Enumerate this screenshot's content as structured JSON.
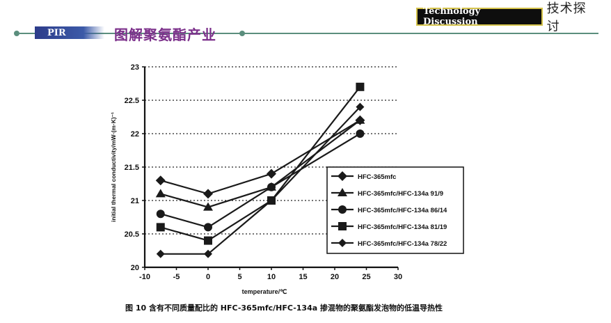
{
  "header": {
    "badge_en": "Technology Discussion",
    "badge_zh": "技术探讨",
    "tab": "PIR",
    "title": "图解聚氨酯产业"
  },
  "caption": "图 10   含有不同质量配比的 HFC-365mfc/HFC-134a 掺混物的聚氨酯发泡物的低温导热性",
  "chart_data": {
    "type": "line",
    "xlabel": "temperature/℃",
    "ylabel": "initial thermal conductivity/mW·(m·K)⁻¹",
    "xlim": [
      -10,
      30
    ],
    "ylim": [
      20,
      23
    ],
    "xticks": [
      -10,
      -5,
      0,
      5,
      10,
      15,
      20,
      25,
      30
    ],
    "yticks": [
      20,
      20.5,
      21,
      21.5,
      22,
      22.5,
      23
    ],
    "grid": "horizontal dotted",
    "legend_position": "right",
    "series": [
      {
        "name": "HFC-365mfc",
        "marker": "diamond",
        "x": [
          -7.5,
          0,
          10,
          24
        ],
        "y": [
          21.3,
          21.1,
          21.4,
          22.2
        ]
      },
      {
        "name": "HFC-365mfc/HFC-134a 91/9",
        "marker": "triangle",
        "x": [
          -7.5,
          0,
          10,
          24
        ],
        "y": [
          21.1,
          20.9,
          21.2,
          22.2
        ]
      },
      {
        "name": "HFC-365mfc/HFC-134a 86/14",
        "marker": "circle",
        "x": [
          -7.5,
          0,
          10,
          24
        ],
        "y": [
          20.8,
          20.6,
          21.2,
          22.0
        ]
      },
      {
        "name": "HFC-365mfc/HFC-134a 81/19",
        "marker": "square",
        "x": [
          -7.5,
          0,
          10,
          24
        ],
        "y": [
          20.6,
          20.4,
          21.0,
          22.7
        ]
      },
      {
        "name": "HFC-365mfc/HFC-134a 78/22",
        "marker": "diamond-small",
        "x": [
          -7.5,
          0,
          10,
          24
        ],
        "y": [
          20.2,
          20.2,
          21.0,
          22.4
        ]
      }
    ]
  }
}
